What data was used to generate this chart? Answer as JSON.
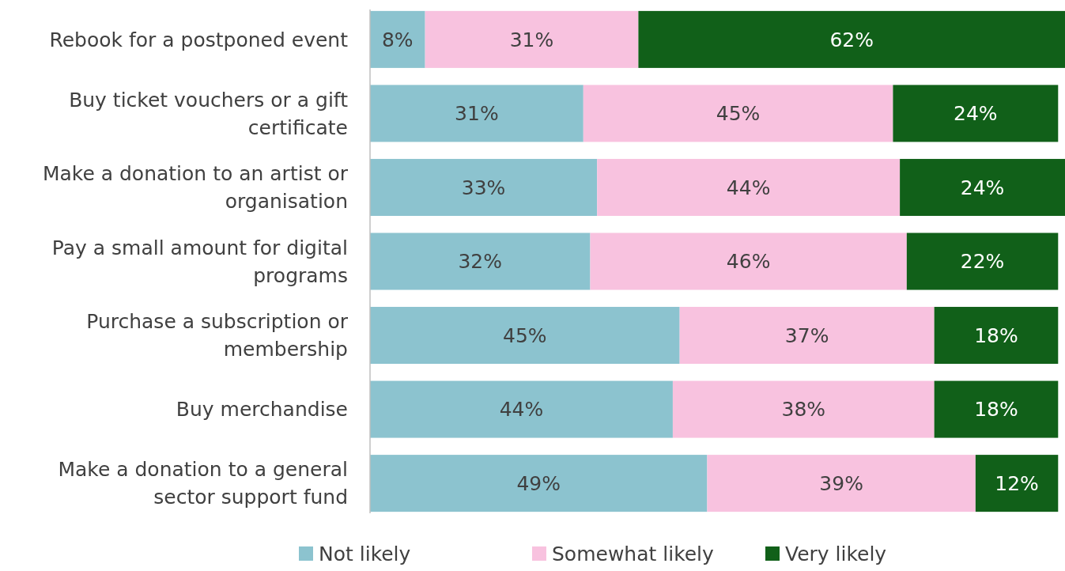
{
  "chart_data": {
    "type": "bar",
    "orientation": "horizontal",
    "stacked": true,
    "legend": "bottom",
    "tick_labels": "y",
    "categories": [
      "Rebook for a postponed event",
      "Buy ticket vouchers or a gift certificate",
      "Make a donation to an artist or organisation",
      "Pay a small amount for digital programs",
      "Purchase a subscription or membership",
      "Buy merchandise",
      "Make a donation to a general sector support fund"
    ],
    "series": [
      {
        "name": "Not likely",
        "color": "#8cc3cf",
        "values": [
          8,
          31,
          33,
          32,
          45,
          44,
          49
        ],
        "value_labels": [
          "8%",
          "31%",
          "33%",
          "32%",
          "45%",
          "44%",
          "49%"
        ]
      },
      {
        "name": "Somewhat likely",
        "color": "#f8c2df",
        "values": [
          31,
          45,
          44,
          46,
          37,
          38,
          39
        ],
        "value_labels": [
          "31%",
          "45%",
          "44%",
          "46%",
          "37%",
          "38%",
          "39%"
        ]
      },
      {
        "name": "Very likely",
        "color": "#116019",
        "values": [
          62,
          24,
          24,
          22,
          18,
          18,
          12
        ],
        "value_labels": [
          "62%",
          "24%",
          "24%",
          "22%",
          "18%",
          "18%",
          "12%"
        ]
      }
    ]
  }
}
